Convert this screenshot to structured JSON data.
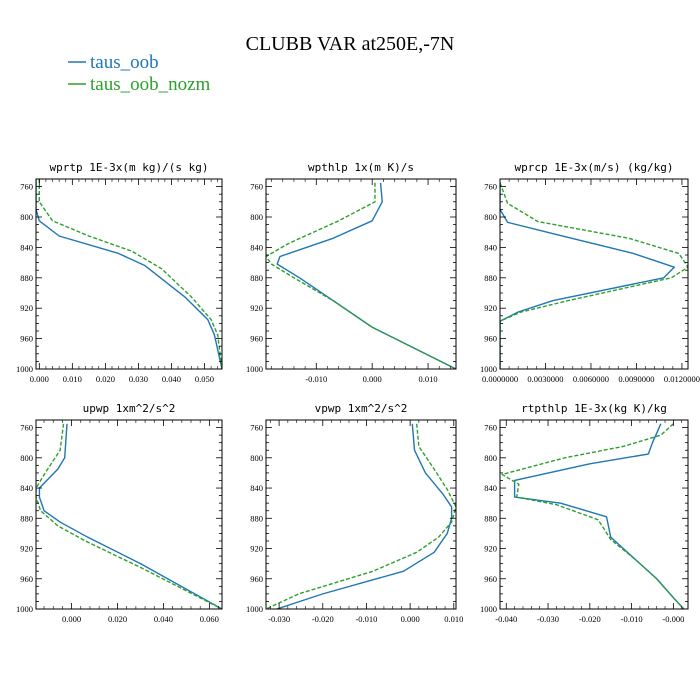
{
  "title": "CLUBB VAR at250E,-7N",
  "legend": [
    {
      "label": "taus_oob",
      "color": "#1f77b4",
      "dash": false
    },
    {
      "label": "taus_oob_nozm",
      "color": "#2ca02c",
      "dash": true
    }
  ],
  "chart_data": [
    {
      "type": "line",
      "title": "wprtp  1E-3x(m kg)/(s kg)",
      "xlim": [
        -0.001,
        0.0553
      ],
      "ylim": [
        1000,
        750
      ],
      "y_ticks": [
        760,
        800,
        840,
        880,
        920,
        960,
        1000
      ],
      "x_ticks": [
        0.0,
        0.01,
        0.02,
        0.03,
        0.04,
        0.05
      ],
      "x_tick_labels": [
        "0.000",
        "0.010",
        "0.020",
        "0.030",
        "0.040",
        "0.050"
      ],
      "series": [
        {
          "name": "taus_oob",
          "color": "#1f77b4",
          "dash": false,
          "points": [
            [
              -0.001,
              750
            ],
            [
              -0.001,
              790
            ],
            [
              0.0,
              805
            ],
            [
              0.006,
              825
            ],
            [
              0.024,
              848
            ],
            [
              0.032,
              864
            ],
            [
              0.044,
              905
            ],
            [
              0.051,
              935
            ],
            [
              0.053,
              955
            ],
            [
              0.0553,
              1000
            ]
          ]
        },
        {
          "name": "taus_oob_nozm",
          "color": "#2ca02c",
          "dash": true,
          "points": [
            [
              0.0,
              750
            ],
            [
              0.0,
              780
            ],
            [
              0.004,
              805
            ],
            [
              0.015,
              825
            ],
            [
              0.028,
              845
            ],
            [
              0.037,
              868
            ],
            [
              0.046,
              905
            ],
            [
              0.052,
              935
            ],
            [
              0.054,
              955
            ],
            [
              0.0553,
              1000
            ]
          ]
        }
      ]
    },
    {
      "type": "line",
      "title": "wpthlp  1x(m K)/s",
      "xlim": [
        -0.019,
        0.015
      ],
      "ylim": [
        1000,
        750
      ],
      "y_ticks": [
        760,
        800,
        840,
        880,
        920,
        960,
        1000
      ],
      "x_ticks": [
        -0.01,
        0.0,
        0.01
      ],
      "x_tick_labels": [
        "-0.010",
        "0.000",
        "0.010"
      ],
      "series": [
        {
          "name": "taus_oob",
          "color": "#1f77b4",
          "dash": false,
          "points": [
            [
              0.0015,
              755
            ],
            [
              0.0018,
              780
            ],
            [
              0.0,
              805
            ],
            [
              -0.007,
              828
            ],
            [
              -0.0165,
              852
            ],
            [
              -0.017,
              862
            ],
            [
              -0.013,
              880
            ],
            [
              -0.007,
              910
            ],
            [
              0.0,
              945
            ],
            [
              0.015,
              1000
            ]
          ]
        },
        {
          "name": "taus_oob_nozm",
          "color": "#2ca02c",
          "dash": true,
          "points": [
            [
              0.0005,
              755
            ],
            [
              0.0005,
              780
            ],
            [
              -0.006,
              805
            ],
            [
              -0.015,
              835
            ],
            [
              -0.019,
              852
            ],
            [
              -0.018,
              862
            ],
            [
              -0.014,
              880
            ],
            [
              -0.007,
              910
            ],
            [
              0.0,
              945
            ],
            [
              0.015,
              1000
            ]
          ]
        }
      ]
    },
    {
      "type": "line",
      "title": "wprcp  1E-3x(m/s) (kg/kg)",
      "xlim": [
        0.0,
        0.0124
      ],
      "ylim": [
        1000,
        750
      ],
      "y_ticks": [
        760,
        800,
        840,
        880,
        920,
        960,
        1000
      ],
      "x_ticks": [
        0.0,
        0.003,
        0.006,
        0.009,
        0.012
      ],
      "x_tick_labels": [
        "0.0000000",
        "0.0030000",
        "0.0060000",
        "0.0090000",
        "0.0120000"
      ],
      "series": [
        {
          "name": "taus_oob",
          "color": "#1f77b4",
          "dash": false,
          "points": [
            [
              0.0,
              755
            ],
            [
              0.0,
              790
            ],
            [
              0.0005,
              807
            ],
            [
              0.0035,
              822
            ],
            [
              0.0088,
              848
            ],
            [
              0.0115,
              866
            ],
            [
              0.0108,
              880
            ],
            [
              0.0035,
              910
            ],
            [
              0.0012,
              925
            ],
            [
              0.0,
              937
            ],
            [
              0.0,
              1000
            ]
          ]
        },
        {
          "name": "taus_oob_nozm",
          "color": "#2ca02c",
          "dash": true,
          "points": [
            [
              0.0,
              755
            ],
            [
              0.0005,
              782
            ],
            [
              0.0025,
              806
            ],
            [
              0.0085,
              828
            ],
            [
              0.0118,
              848
            ],
            [
              0.0124,
              866
            ],
            [
              0.0113,
              880
            ],
            [
              0.0045,
              910
            ],
            [
              0.0014,
              925
            ],
            [
              0.0,
              937
            ],
            [
              0.0,
              1000
            ]
          ]
        }
      ]
    },
    {
      "type": "line",
      "title": "upwp  1xm^2/s^2",
      "xlim": [
        -0.0155,
        0.0655
      ],
      "ylim": [
        1000,
        750
      ],
      "y_ticks": [
        760,
        800,
        840,
        880,
        920,
        960,
        1000
      ],
      "x_ticks": [
        0.0,
        0.02,
        0.04,
        0.06
      ],
      "x_tick_labels": [
        "0.000",
        "0.020",
        "0.040",
        "0.060"
      ],
      "series": [
        {
          "name": "taus_oob",
          "color": "#1f77b4",
          "dash": false,
          "points": [
            [
              -0.002,
              755
            ],
            [
              -0.003,
              800
            ],
            [
              -0.006,
              815
            ],
            [
              -0.014,
              840
            ],
            [
              -0.014,
              852
            ],
            [
              -0.012,
              870
            ],
            [
              -0.005,
              885
            ],
            [
              0.007,
              905
            ],
            [
              0.03,
              940
            ],
            [
              0.0655,
              1000
            ]
          ]
        },
        {
          "name": "taus_oob_nozm",
          "color": "#2ca02c",
          "dash": true,
          "points": [
            [
              -0.0035,
              755
            ],
            [
              -0.005,
              790
            ],
            [
              -0.0115,
              820
            ],
            [
              -0.0155,
              840
            ],
            [
              -0.0155,
              852
            ],
            [
              -0.0135,
              870
            ],
            [
              -0.006,
              890
            ],
            [
              0.006,
              910
            ],
            [
              0.03,
              945
            ],
            [
              0.0655,
              1000
            ]
          ]
        }
      ]
    },
    {
      "type": "line",
      "title": "vpwp  1xm^2/s^2",
      "xlim": [
        -0.033,
        0.0105
      ],
      "ylim": [
        1000,
        750
      ],
      "y_ticks": [
        760,
        800,
        840,
        880,
        920,
        960,
        1000
      ],
      "x_ticks": [
        -0.03,
        -0.02,
        -0.01,
        0.0,
        0.01
      ],
      "x_tick_labels": [
        "-0.030",
        "-0.020",
        "-0.010",
        "0.000",
        "0.010"
      ],
      "series": [
        {
          "name": "taus_oob",
          "color": "#1f77b4",
          "dash": false,
          "points": [
            [
              0.0005,
              755
            ],
            [
              0.001,
              790
            ],
            [
              0.0035,
              820
            ],
            [
              0.0075,
              848
            ],
            [
              0.0095,
              865
            ],
            [
              0.0095,
              880
            ],
            [
              0.0085,
              900
            ],
            [
              0.0055,
              925
            ],
            [
              -0.0015,
              950
            ],
            [
              -0.02,
              980
            ],
            [
              -0.0305,
              1000
            ]
          ]
        },
        {
          "name": "taus_oob_nozm",
          "color": "#2ca02c",
          "dash": true,
          "points": [
            [
              0.0015,
              755
            ],
            [
              0.002,
              785
            ],
            [
              0.0055,
              815
            ],
            [
              0.0085,
              842
            ],
            [
              0.0105,
              865
            ],
            [
              0.0095,
              885
            ],
            [
              0.0065,
              905
            ],
            [
              0.0015,
              925
            ],
            [
              -0.0085,
              950
            ],
            [
              -0.0255,
              980
            ],
            [
              -0.033,
              1000
            ]
          ]
        }
      ]
    },
    {
      "type": "line",
      "title": "rtpthlp  1E-3x(kg K)/kg",
      "xlim": [
        -0.0415,
        0.0035
      ],
      "ylim": [
        1000,
        750
      ],
      "y_ticks": [
        760,
        800,
        840,
        880,
        920,
        960,
        1000
      ],
      "x_ticks": [
        -0.04,
        -0.03,
        -0.02,
        -0.01,
        0.0
      ],
      "x_tick_labels": [
        "-0.040",
        "-0.030",
        "-0.020",
        "-0.010",
        "-0.000"
      ],
      "series": [
        {
          "name": "taus_oob",
          "color": "#1f77b4",
          "dash": false,
          "points": [
            [
              -0.003,
              755
            ],
            [
              -0.005,
              780
            ],
            [
              -0.006,
              795
            ],
            [
              -0.02,
              808
            ],
            [
              -0.038,
              830
            ],
            [
              -0.038,
              852
            ],
            [
              -0.027,
              860
            ],
            [
              -0.016,
              878
            ],
            [
              -0.015,
              905
            ],
            [
              -0.009,
              935
            ],
            [
              -0.004,
              960
            ],
            [
              0.0,
              985
            ],
            [
              0.0025,
              1000
            ]
          ]
        },
        {
          "name": "taus_oob_nozm",
          "color": "#2ca02c",
          "dash": true,
          "points": [
            [
              0.0,
              755
            ],
            [
              -0.003,
              770
            ],
            [
              -0.012,
              785
            ],
            [
              -0.026,
              800
            ],
            [
              -0.041,
              822
            ],
            [
              -0.037,
              835
            ],
            [
              -0.0375,
              852
            ],
            [
              -0.028,
              862
            ],
            [
              -0.018,
              882
            ],
            [
              -0.015,
              908
            ],
            [
              -0.009,
              935
            ],
            [
              -0.004,
              960
            ],
            [
              0.0,
              985
            ],
            [
              0.0025,
              1000
            ]
          ]
        }
      ]
    }
  ]
}
